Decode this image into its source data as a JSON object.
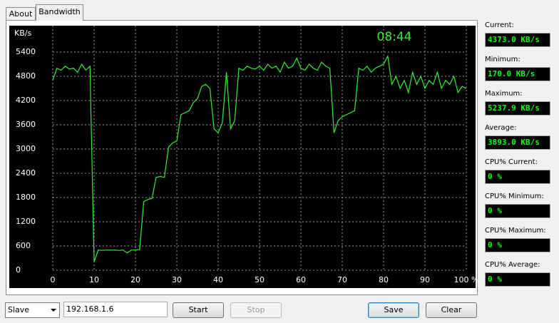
{
  "tabs": [
    "About",
    "Bandwidth"
  ],
  "chart_data": {
    "type": "line",
    "y_unit": "KB/s",
    "clock": "08:44",
    "color": "#33ee33",
    "grid": true,
    "xlim": [
      0,
      100
    ],
    "ylim": [
      0,
      6000
    ],
    "xticks": [
      0,
      10,
      20,
      30,
      40,
      50,
      60,
      70,
      80,
      90,
      {
        "value": 100,
        "label": "100 %"
      }
    ],
    "yticks": [
      0,
      600,
      1200,
      1800,
      2400,
      3000,
      3600,
      4200,
      4800,
      5400
    ],
    "x": [
      0,
      1,
      2,
      3,
      4,
      5,
      6,
      7,
      8,
      9,
      10,
      11,
      12,
      13,
      14,
      15,
      16,
      17,
      18,
      19,
      20,
      21,
      22,
      23,
      24,
      25,
      26,
      27,
      28,
      29,
      30,
      31,
      32,
      33,
      34,
      35,
      36,
      37,
      38,
      39,
      40,
      41,
      42,
      43,
      44,
      45,
      46,
      47,
      48,
      49,
      50,
      51,
      52,
      53,
      54,
      55,
      56,
      57,
      58,
      59,
      60,
      61,
      62,
      63,
      64,
      65,
      66,
      67,
      68,
      69,
      70,
      71,
      72,
      73,
      74,
      75,
      76,
      77,
      78,
      79,
      80,
      81,
      82,
      83,
      84,
      85,
      86,
      87,
      88,
      89,
      90,
      91,
      92,
      93,
      94,
      95,
      96,
      97,
      98,
      99,
      100
    ],
    "values": [
      4700,
      5000,
      4950,
      5050,
      4980,
      5000,
      4900,
      5100,
      4950,
      5050,
      210,
      500,
      490,
      500,
      495,
      500,
      490,
      500,
      430,
      500,
      500,
      510,
      1700,
      1750,
      1780,
      2300,
      2320,
      2300,
      3050,
      3150,
      3200,
      3850,
      3900,
      3950,
      4150,
      4250,
      4550,
      4600,
      4500,
      3500,
      3400,
      3650,
      4900,
      3500,
      3700,
      5000,
      4950,
      5050,
      5000,
      4980,
      5050,
      4950,
      5100,
      5000,
      5050,
      4900,
      5150,
      5000,
      5050,
      5250,
      5000,
      4950,
      5100,
      5000,
      4950,
      5150,
      5050,
      5000,
      3400,
      3700,
      3800,
      3850,
      3900,
      3950,
      5000,
      4950,
      5050,
      4900,
      5000,
      5050,
      5100,
      5300,
      4600,
      4800,
      4500,
      4700,
      4400,
      4900,
      4600,
      4800,
      4500,
      4700,
      4600,
      4900,
      4500,
      4700,
      4600,
      4800,
      4400,
      4550,
      4500
    ]
  },
  "stats": [
    {
      "label": "Current:",
      "value": "4373.0 KB/s"
    },
    {
      "label": "Minimum:",
      "value": "170.0 KB/s"
    },
    {
      "label": "Maximum:",
      "value": "5237.9 KB/s"
    },
    {
      "label": "Average:",
      "value": "3893.0 KB/s"
    },
    {
      "label": "CPU% Current:",
      "value": "0 %"
    },
    {
      "label": "CPU% Minimum:",
      "value": "0 %"
    },
    {
      "label": "CPU% Maximum:",
      "value": "0 %"
    },
    {
      "label": "CPU% Average:",
      "value": "0 %"
    }
  ],
  "controls": {
    "mode": "Slave",
    "address": "192.168.1.6",
    "start": "Start",
    "stop": "Stop",
    "save": "Save",
    "clear": "Clear"
  }
}
